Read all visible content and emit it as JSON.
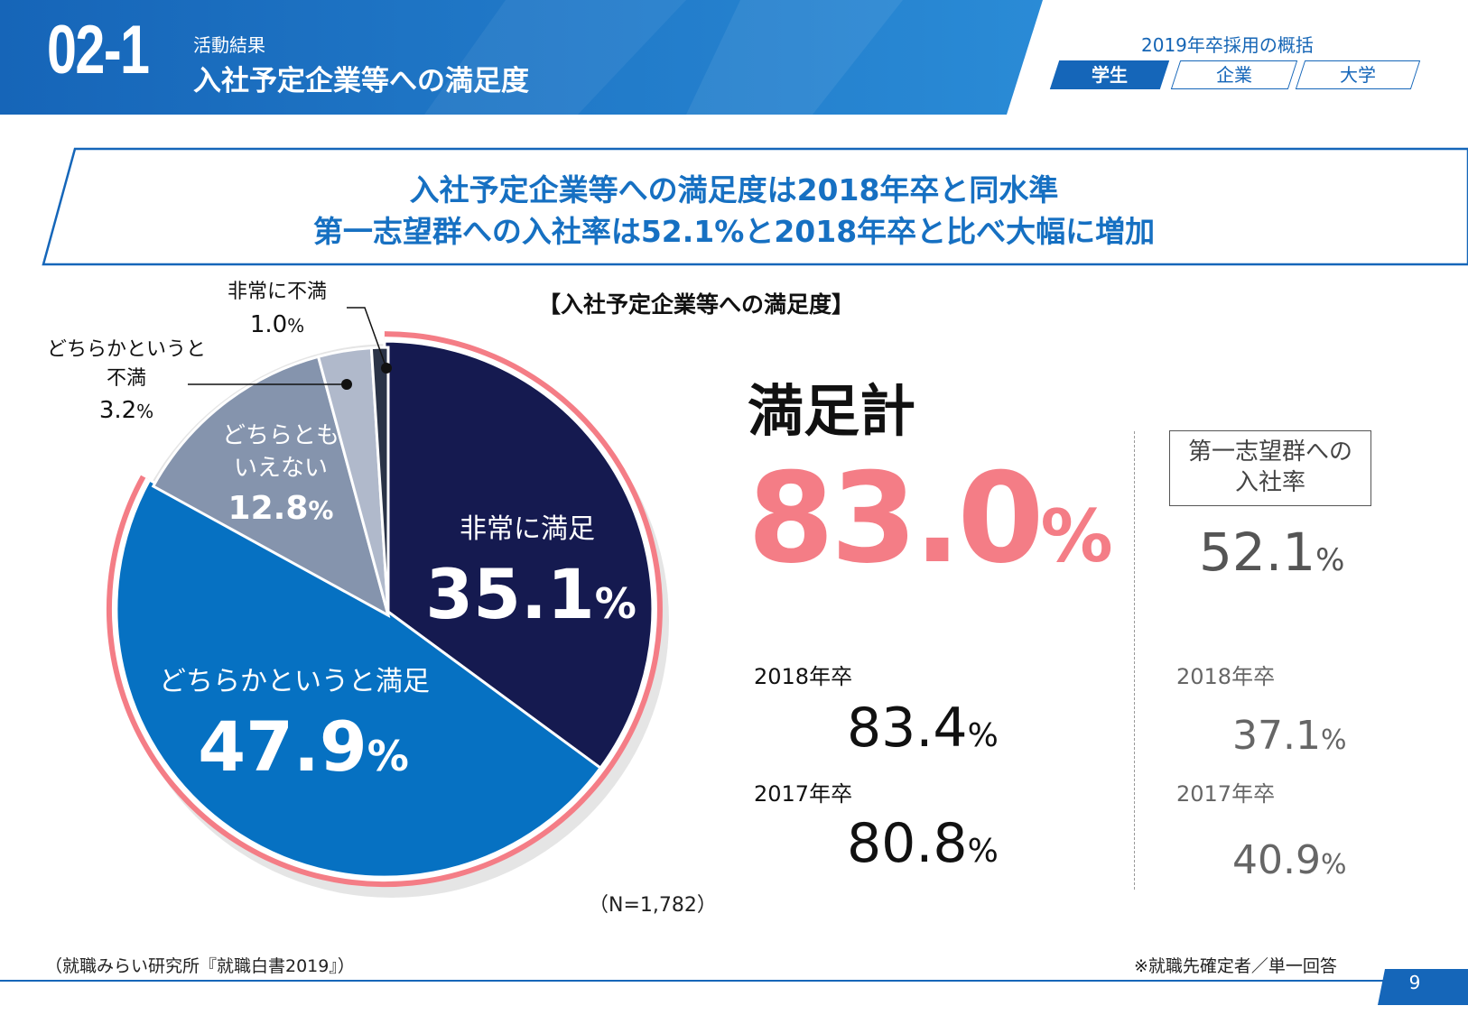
{
  "header": {
    "section_number": "02-1",
    "section_subtitle": "活動結果",
    "section_title": "入社予定企業等への満足度",
    "overview_title": "2019年卒採用の概括",
    "tabs": [
      {
        "label": "学生",
        "active": true
      },
      {
        "label": "企業",
        "active": false
      },
      {
        "label": "大学",
        "active": false
      }
    ]
  },
  "headline": {
    "line1": "入社予定企業等への満足度は2018年卒と同水準",
    "line2": "第一志望群への入社率は52.1%と2018年卒と比べ大幅に増加"
  },
  "chart_data": {
    "type": "pie",
    "title": "【入社予定企業等への満足度】",
    "slices": [
      {
        "label": "非常に満足",
        "value": 35.1,
        "value_text": "35.1",
        "color": "#151a50",
        "text_color": "#ffffff"
      },
      {
        "label": "どちらかというと満足",
        "value": 47.9,
        "value_text": "47.9",
        "color": "#0671c2",
        "text_color": "#ffffff"
      },
      {
        "label": "どちらともいえない",
        "value": 12.8,
        "value_text": "12.8",
        "color": "#8594ad",
        "text_color": "#ffffff"
      },
      {
        "label": "どちらかというと不満",
        "value": 3.2,
        "value_text": "3.2",
        "color": "#b0b9cb",
        "text_color": "#111111"
      },
      {
        "label": "非常に不満",
        "value": 1.0,
        "value_text": "1.0",
        "color": "#2a3347",
        "text_color": "#111111"
      }
    ],
    "unit": "%",
    "satisfaction_highlight_color": "#f47d86",
    "n_label": "（N=1,782）"
  },
  "callouts": {
    "very_dissatisfied": {
      "line1": "非常に不満",
      "value": "1.0"
    },
    "somewhat_dissatisfied": {
      "line1": "どちらかというと",
      "line2": "不満",
      "value": "3.2"
    },
    "neutral": {
      "line1": "どちらとも",
      "line2": "いえない",
      "value": "12.8"
    }
  },
  "satisfaction": {
    "label": "満足計",
    "value": "83.0",
    "unit": "%",
    "y2018_label": "2018年卒",
    "y2018_value": "83.4",
    "y2017_label": "2017年卒",
    "y2017_value": "80.8"
  },
  "first_choice": {
    "label_line1": "第一志望群への",
    "label_line2": "入社率",
    "value": "52.1",
    "unit": "%",
    "y2018_label": "2018年卒",
    "y2018_value": "37.1",
    "y2017_label": "2017年卒",
    "y2017_value": "40.9"
  },
  "footer": {
    "source": "（就職みらい研究所『就職白書2019』）",
    "note": "※就職先確定者／単一回答",
    "page": "9"
  },
  "colors": {
    "brand_blue": "#1566b9",
    "headline_blue": "#1670c2",
    "pink": "#f47d86"
  }
}
